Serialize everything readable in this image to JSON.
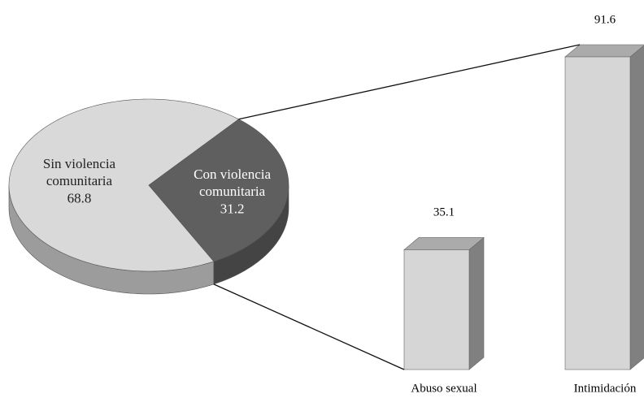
{
  "chart_data": [
    {
      "type": "pie",
      "categories": [
        "Sin violencia comunitaria",
        "Con violencia comunitaria"
      ],
      "values": [
        68.8,
        31.2
      ],
      "colors": [
        "#d9d9d9",
        "#5f5f5f"
      ]
    },
    {
      "type": "bar",
      "categories": [
        "Abuso sexual",
        "Intimidación"
      ],
      "values": [
        35.1,
        91.6
      ],
      "color": "#d6d6d6"
    }
  ]
}
